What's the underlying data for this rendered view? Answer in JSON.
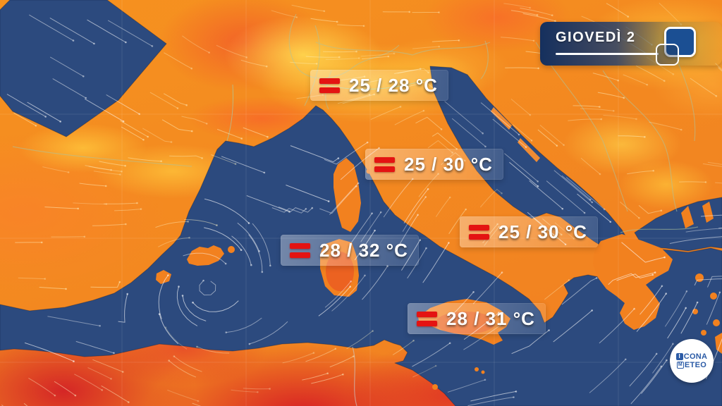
{
  "day_badge": {
    "label": "GIOVEDÌ 2",
    "icon": "overlapping-squares-icon"
  },
  "temperature_labels": [
    {
      "id": "north-italy",
      "icon": "equals-icon",
      "text": "25 / 28 °C"
    },
    {
      "id": "central-italy",
      "icon": "equals-icon",
      "text": "25 / 30 °C"
    },
    {
      "id": "sardinia",
      "icon": "equals-icon",
      "text": "28 / 32 °C"
    },
    {
      "id": "south-italy",
      "icon": "equals-icon",
      "text": "25 / 30 °C"
    },
    {
      "id": "sicily",
      "icon": "equals-icon",
      "text": "28 / 31 °C"
    }
  ],
  "logo": {
    "line1_initial": "I",
    "line1_rest": "CONA",
    "line2_initial": "M",
    "line2_rest": "ETEO"
  },
  "colors": {
    "sea": "#2c4a7e",
    "land_orange": "#f28420",
    "hot_red": "#d81f26",
    "warm_yellow": "#ffc83d",
    "label_accent_red": "#e41312",
    "badge_navy": "#15305e",
    "badge_blue": "#1b4f93",
    "logo_blue": "#2b5ba6"
  }
}
